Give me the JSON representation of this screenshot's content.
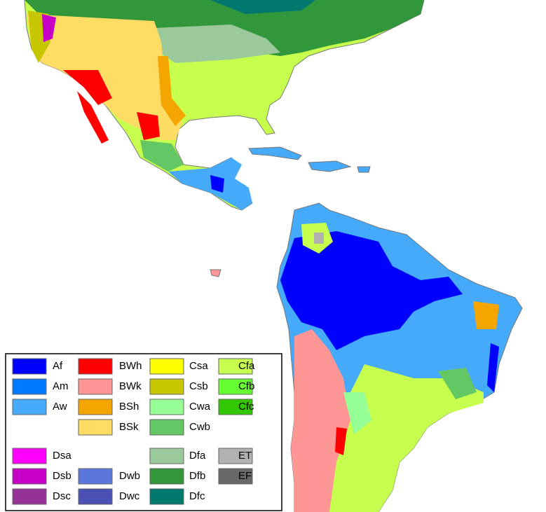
{
  "legend": {
    "items": [
      {
        "label": "Af",
        "color": "#0000fe"
      },
      {
        "label": "Am",
        "color": "#0078ff"
      },
      {
        "label": "Aw",
        "color": "#46aafa"
      },
      {
        "label": "BWh",
        "color": "#fe0000"
      },
      {
        "label": "BWk",
        "color": "#fe9696"
      },
      {
        "label": "BSh",
        "color": "#f5a500"
      },
      {
        "label": "BSk",
        "color": "#ffdc64"
      },
      {
        "label": "Csa",
        "color": "#ffff00"
      },
      {
        "label": "Csb",
        "color": "#c6c700"
      },
      {
        "label": "Cwa",
        "color": "#96ff96"
      },
      {
        "label": "Cwb",
        "color": "#63c764"
      },
      {
        "label": "Cfa",
        "color": "#c6ff4e"
      },
      {
        "label": "Cfb",
        "color": "#66ff33"
      },
      {
        "label": "Cfc",
        "color": "#33c701"
      },
      {
        "label": "Dsa",
        "color": "#ff00fe"
      },
      {
        "label": "Dsb",
        "color": "#c600c7"
      },
      {
        "label": "Dsc",
        "color": "#963295"
      },
      {
        "label": "Dwb",
        "color": "#5a77db"
      },
      {
        "label": "Dwc",
        "color": "#4b50b4"
      },
      {
        "label": "Dfa",
        "color": "#9bc99b"
      },
      {
        "label": "Dfb",
        "color": "#32963a"
      },
      {
        "label": "Dfc",
        "color": "#00786e"
      },
      {
        "label": "ET",
        "color": "#b2b2b2"
      },
      {
        "label": "EF",
        "color": "#686868"
      }
    ]
  }
}
